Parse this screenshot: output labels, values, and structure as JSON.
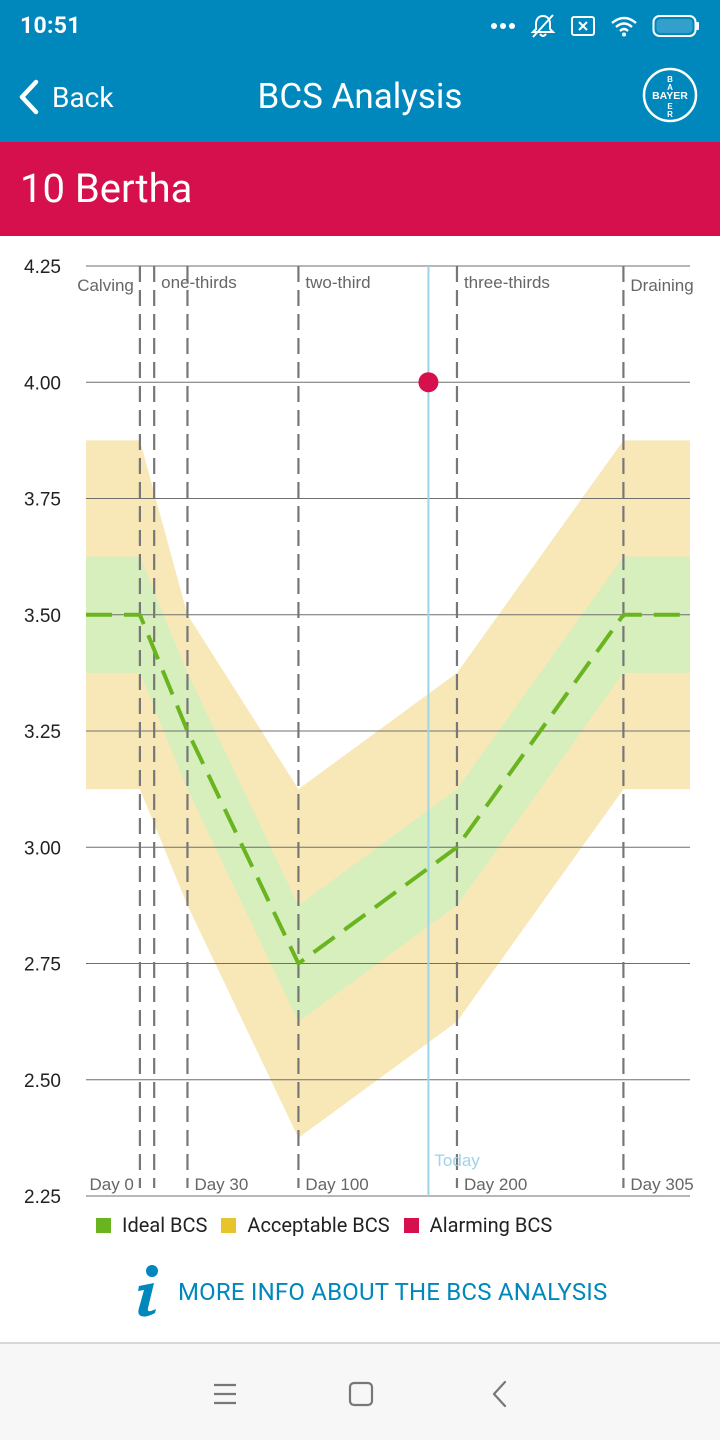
{
  "status_bar": {
    "time": "10:51",
    "icons": [
      "more-dots-icon",
      "bell-off-icon",
      "sim-x-icon",
      "wifi-icon",
      "battery-icon"
    ]
  },
  "app_bar": {
    "back_label": "Back",
    "title": "BCS Analysis",
    "logo_text": "BAYER"
  },
  "animal": {
    "name": "10 Bertha"
  },
  "colors": {
    "brand_blue": "#0088bd",
    "banner_red": "#d5104c",
    "ideal_green": "#6ab51f",
    "ideal_band": "#d7eebd",
    "acceptable_yellow": "#e8c42c",
    "acceptable_band": "#f8e8b8",
    "alarming_red": "#d5104c",
    "today_line": "#9fd3e6"
  },
  "chart_data": {
    "type": "line",
    "ylim": [
      2.25,
      4.25
    ],
    "xlim": [
      -34,
      347
    ],
    "yticks": [
      "4.25",
      "4.00",
      "3.75",
      "3.50",
      "3.25",
      "3.00",
      "2.75",
      "2.50",
      "2.25"
    ],
    "grid": true,
    "phases": [
      {
        "label": "Calving",
        "day": 0
      },
      {
        "label": "one-thirds",
        "day": 9
      },
      {
        "label": "two-third",
        "day": 100
      },
      {
        "label": "three-thirds",
        "day": 200
      },
      {
        "label": "Draining",
        "day": 305
      }
    ],
    "day_markers": [
      {
        "label": "Day 0",
        "day": 0
      },
      {
        "label": "Day 30",
        "day": 30
      },
      {
        "label": "Day 100",
        "day": 100
      },
      {
        "label": "Day 200",
        "day": 200
      },
      {
        "label": "Day 305",
        "day": 305
      }
    ],
    "ideal_series": {
      "name": "Ideal BCS",
      "x": [
        -34,
        0,
        30,
        100,
        200,
        305,
        347
      ],
      "y": [
        3.5,
        3.5,
        3.25,
        2.75,
        3.0,
        3.5,
        3.5
      ]
    },
    "ideal_band": {
      "x": [
        -34,
        0,
        30,
        100,
        200,
        305,
        347
      ],
      "upper": [
        3.625,
        3.625,
        3.375,
        2.875,
        3.125,
        3.625,
        3.625
      ],
      "lower": [
        3.375,
        3.375,
        3.125,
        2.625,
        2.875,
        3.375,
        3.375
      ]
    },
    "acceptable_band": {
      "x": [
        -34,
        0,
        30,
        100,
        200,
        305,
        347
      ],
      "upper": [
        3.875,
        3.875,
        3.5,
        3.125,
        3.375,
        3.875,
        3.875
      ],
      "lower": [
        3.125,
        3.125,
        2.875,
        2.375,
        2.625,
        3.125,
        3.125
      ]
    },
    "today": {
      "label": "Today",
      "day": 182
    },
    "measurement": {
      "day": 182,
      "value": 4.0,
      "status": "Alarming BCS"
    },
    "legend": [
      {
        "label": "Ideal BCS",
        "color": "#6ab51f"
      },
      {
        "label": "Acceptable BCS",
        "color": "#e8c42c"
      },
      {
        "label": "Alarming BCS",
        "color": "#d5104c"
      }
    ]
  },
  "more_info": {
    "label": "MORE INFO ABOUT THE BCS ANALYSIS",
    "icon": "info-icon"
  },
  "nav_bar": {
    "icons": [
      "menu-icon",
      "home-square-icon",
      "back-chevron-icon"
    ]
  }
}
